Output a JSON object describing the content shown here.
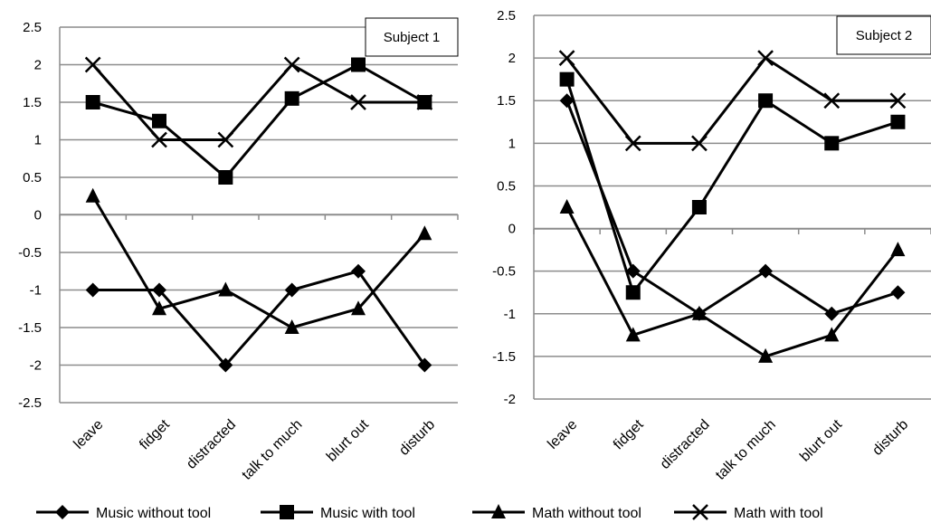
{
  "chart_data": [
    {
      "type": "line",
      "title": "Subject 1",
      "categories": [
        "leave",
        "fidget",
        "distracted",
        "talk to much",
        "blurt out",
        "disturb"
      ],
      "ylim": [
        -2.5,
        2.5
      ],
      "yticks": [
        "2.5",
        "2",
        "1.5",
        "1",
        "0.5",
        "0",
        "-0.5",
        "-1",
        "-1.5",
        "-2",
        "-2.5"
      ],
      "grid": true,
      "series": [
        {
          "name": "Music without tool",
          "marker": "diamond",
          "values": [
            -1,
            -1,
            -2,
            -1,
            -0.75,
            -2
          ]
        },
        {
          "name": "Music with tool",
          "marker": "square",
          "values": [
            1.5,
            1.25,
            0.5,
            1.55,
            2,
            1.5
          ]
        },
        {
          "name": "Math without tool",
          "marker": "triangle",
          "values": [
            0.25,
            -1.25,
            -1,
            -1.5,
            -1.25,
            -0.25
          ]
        },
        {
          "name": "Math with tool",
          "marker": "x",
          "values": [
            2,
            1,
            1,
            2,
            1.5,
            1.5
          ]
        }
      ]
    },
    {
      "type": "line",
      "title": "Subject 2",
      "categories": [
        "leave",
        "fidget",
        "distracted",
        "talk to much",
        "blurt out",
        "disturb"
      ],
      "ylim": [
        -2,
        2.5
      ],
      "yticks": [
        "2.5",
        "2",
        "1.5",
        "1",
        "0.5",
        "0",
        "-0.5",
        "-1",
        "-1.5",
        "-2"
      ],
      "grid": true,
      "series": [
        {
          "name": "Music without tool",
          "marker": "diamond",
          "values": [
            1.5,
            -0.5,
            -1,
            -0.5,
            -1,
            -0.75
          ]
        },
        {
          "name": "Music with tool",
          "marker": "square",
          "values": [
            1.75,
            -0.75,
            0.25,
            1.5,
            1,
            1.25
          ]
        },
        {
          "name": "Math without tool",
          "marker": "triangle",
          "values": [
            0.25,
            -1.25,
            -1,
            -1.5,
            -1.25,
            -0.25
          ]
        },
        {
          "name": "Math with tool",
          "marker": "x",
          "values": [
            2,
            1,
            1,
            2,
            1.5,
            1.5
          ]
        }
      ]
    }
  ],
  "legend": {
    "position": "bottom",
    "entries": [
      {
        "label": "Music without tool",
        "marker": "diamond"
      },
      {
        "label": "Music with tool",
        "marker": "square"
      },
      {
        "label": "Math without tool",
        "marker": "triangle"
      },
      {
        "label": "Math with tool",
        "marker": "x"
      }
    ]
  },
  "colors": {
    "line": "#000000",
    "grid": "#8c8c8c",
    "background": "#ffffff"
  }
}
